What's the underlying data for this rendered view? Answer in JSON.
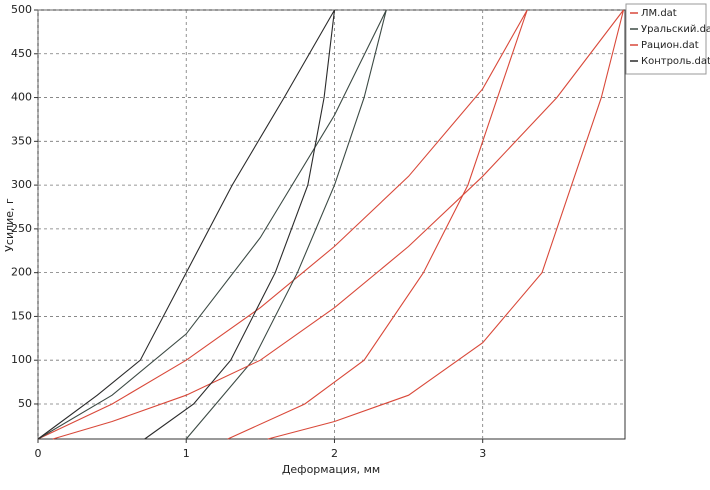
{
  "chart_data": {
    "type": "line",
    "x_label": "Деформация, мм",
    "y_label": "Усилие, г",
    "xlim": [
      0,
      3.96
    ],
    "ylim": [
      10,
      500
    ],
    "xticks": [
      0,
      1,
      2,
      3
    ],
    "yticks": [
      50,
      100,
      150,
      200,
      250,
      300,
      350,
      400,
      450,
      500
    ],
    "grid": true,
    "legend": "outside-right",
    "series": [
      {
        "name": "ЛМ.dat",
        "color": "#d9493a",
        "x": [
          0,
          0.5,
          1,
          1.5,
          2,
          2.5,
          3,
          3.3,
          3.1,
          2.9,
          2.6,
          2.2,
          1.8,
          1.28
        ],
        "values": [
          10,
          50,
          100,
          160,
          230,
          310,
          410,
          500,
          400,
          300,
          200,
          100,
          50,
          10
        ]
      },
      {
        "name": "Уральский.dat",
        "color": "#3c4a44",
        "x": [
          0,
          0.5,
          1,
          1.5,
          2,
          2.35,
          2.2,
          2.0,
          1.75,
          1.45,
          1.2,
          1.0
        ],
        "values": [
          10,
          60,
          130,
          240,
          380,
          500,
          400,
          300,
          200,
          100,
          50,
          10
        ]
      },
      {
        "name": "Рацион.dat",
        "color": "#d9493a",
        "x": [
          0.1,
          0.5,
          1,
          1.5,
          2,
          2.5,
          3,
          3.5,
          3.95,
          3.8,
          3.6,
          3.4,
          3.0,
          2.5,
          2.0,
          1.55
        ],
        "values": [
          10,
          30,
          60,
          100,
          160,
          230,
          310,
          400,
          500,
          400,
          300,
          200,
          120,
          60,
          30,
          10
        ]
      },
      {
        "name": "Контроль.dat",
        "color": "#2b2b2b",
        "x": [
          0,
          0.4,
          0.69,
          1.0,
          1.31,
          1.66,
          2.0,
          1.93,
          1.82,
          1.6,
          1.3,
          1.05,
          0.72
        ],
        "values": [
          10,
          60,
          100,
          200,
          300,
          400,
          500,
          400,
          300,
          200,
          100,
          50,
          10
        ]
      }
    ]
  }
}
